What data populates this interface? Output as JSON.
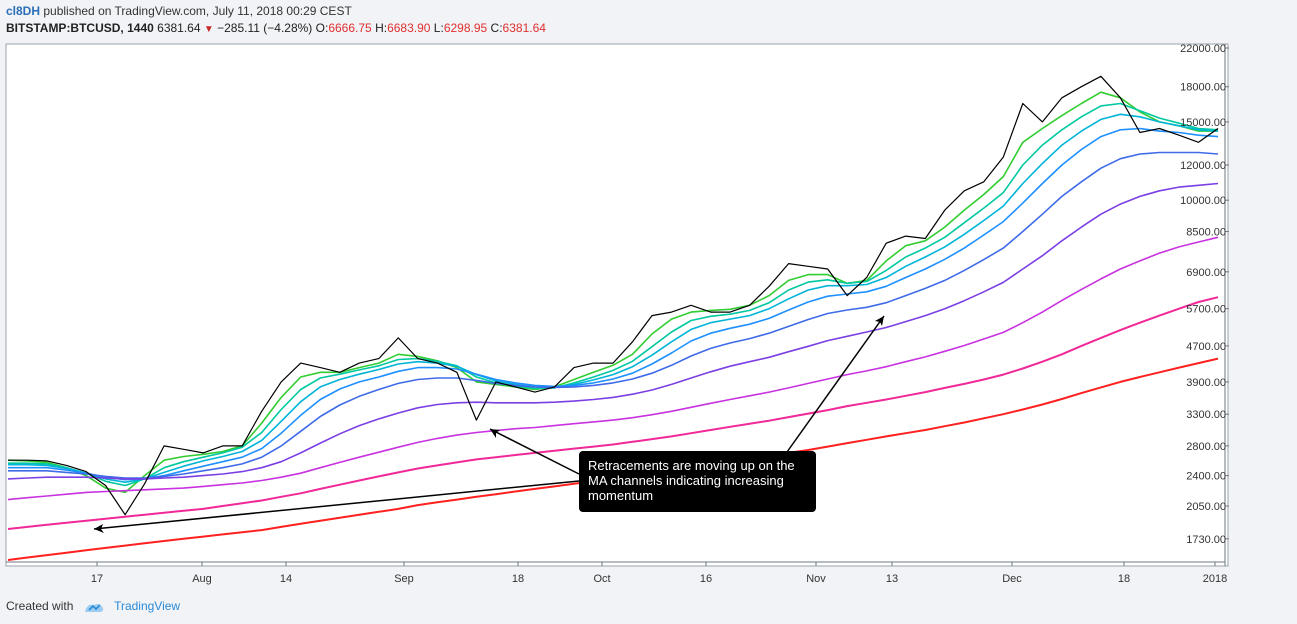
{
  "header": {
    "user": "cl8DH",
    "published": "published on TradingView.com, July 11, 2018 00:29 CEST",
    "symbol": "BITSTAMP:BTCUSD, 1440",
    "last": "6381.64",
    "change": "−285.11 (−4.28%)",
    "o_label": "O:",
    "o_val": "6666.75",
    "h_label": "H:",
    "h_val": "6683.90",
    "l_label": "L:",
    "l_val": "6298.95",
    "c_label": "C:",
    "c_val": "6381.64"
  },
  "footer": {
    "created": "Created with",
    "brand": "TradingView"
  },
  "annotation": "Retracements are moving up on the MA channels indicating increasing momentum",
  "colors": {
    "background": "#ffffff",
    "price": "#000000",
    "ma": [
      "#32cd32",
      "#00c8a0",
      "#00b4d8",
      "#1e90ff",
      "#3f6be8",
      "#7b3fe4",
      "#c832e0",
      "#f02898",
      "#ff2020",
      "#ff6a00"
    ]
  },
  "chart_data": {
    "type": "line",
    "title": "",
    "ylim": [
      1550,
      22000
    ],
    "y_scale": "log",
    "x_ticks": [
      "17",
      "Aug",
      "14",
      "Sep",
      "18",
      "Oct",
      "16",
      "Nov",
      "13",
      "Dec",
      "18",
      "2018"
    ],
    "y_ticks": [
      "22000.00",
      "18000.00",
      "15000.00",
      "12000.00",
      "10000.00",
      "8500.00",
      "6900.00",
      "5700.00",
      "4700.00",
      "3900.00",
      "3300.00",
      "2800.00",
      "2400.00",
      "2050.00",
      "1730.00"
    ],
    "series": [
      {
        "values": [
          2600,
          2600,
          2590,
          2530,
          2450,
          2280,
          1960,
          2300,
          2800,
          2750,
          2700,
          2800,
          2800,
          3350,
          3900,
          4300,
          4200,
          4100,
          4300,
          4400,
          4900,
          4400,
          4300,
          4100,
          3200,
          3900,
          3800,
          3700,
          3800,
          4200,
          4300,
          4300,
          4800,
          5500,
          5600,
          5800,
          5600,
          5600,
          5800,
          6400,
          7200,
          7100,
          7000,
          6100,
          6700,
          8000,
          8300,
          8200,
          9500,
          10500,
          11000,
          12500,
          16500,
          15000,
          17000,
          18000,
          19000,
          17000,
          14200,
          14500,
          14000,
          13500,
          14500
        ]
      },
      {
        "values": [
          2600,
          2590,
          2570,
          2500,
          2400,
          2250,
          2200,
          2400,
          2600,
          2650,
          2680,
          2720,
          2800,
          3150,
          3600,
          4000,
          4100,
          4100,
          4200,
          4300,
          4500,
          4450,
          4350,
          4200,
          3900,
          3850,
          3800,
          3750,
          3800,
          3950,
          4100,
          4250,
          4500,
          5000,
          5400,
          5600,
          5650,
          5680,
          5800,
          6100,
          6600,
          6800,
          6800,
          6500,
          6600,
          7300,
          7900,
          8100,
          8700,
          9500,
          10300,
          11300,
          13500,
          14500,
          15500,
          16500,
          17500,
          17000,
          15800,
          15000,
          14700,
          14300,
          14300
        ]
      },
      {
        "values": [
          2560,
          2560,
          2550,
          2500,
          2430,
          2330,
          2280,
          2360,
          2500,
          2580,
          2640,
          2700,
          2780,
          3000,
          3380,
          3750,
          3980,
          4060,
          4150,
          4240,
          4380,
          4400,
          4340,
          4240,
          4000,
          3880,
          3820,
          3770,
          3780,
          3880,
          4000,
          4140,
          4340,
          4680,
          5050,
          5360,
          5480,
          5540,
          5650,
          5880,
          6280,
          6540,
          6620,
          6500,
          6560,
          6950,
          7450,
          7800,
          8250,
          8900,
          9600,
          10400,
          12000,
          13300,
          14400,
          15400,
          16300,
          16500,
          15900,
          15300,
          14900,
          14500,
          14400
        ]
      },
      {
        "values": [
          2540,
          2540,
          2530,
          2490,
          2430,
          2360,
          2320,
          2360,
          2440,
          2520,
          2590,
          2650,
          2720,
          2880,
          3180,
          3520,
          3800,
          3950,
          4060,
          4160,
          4280,
          4330,
          4300,
          4230,
          4050,
          3920,
          3850,
          3800,
          3790,
          3850,
          3940,
          4050,
          4220,
          4480,
          4800,
          5120,
          5300,
          5400,
          5500,
          5700,
          6000,
          6280,
          6420,
          6420,
          6460,
          6700,
          7100,
          7450,
          7850,
          8380,
          9000,
          9700,
          10900,
          12100,
          13300,
          14300,
          15200,
          15600,
          15400,
          15000,
          14700,
          14400,
          14300
        ]
      },
      {
        "values": [
          2500,
          2500,
          2500,
          2470,
          2430,
          2380,
          2350,
          2360,
          2400,
          2460,
          2520,
          2580,
          2640,
          2760,
          2990,
          3280,
          3560,
          3760,
          3900,
          4000,
          4120,
          4200,
          4200,
          4170,
          4060,
          3950,
          3880,
          3830,
          3810,
          3830,
          3880,
          3960,
          4080,
          4280,
          4530,
          4820,
          5020,
          5150,
          5260,
          5420,
          5660,
          5900,
          6080,
          6150,
          6220,
          6400,
          6700,
          7000,
          7360,
          7800,
          8350,
          8950,
          9850,
          10900,
          12000,
          13000,
          13900,
          14400,
          14500,
          14300,
          14200,
          14000,
          13900
        ]
      },
      {
        "values": [
          2460,
          2460,
          2460,
          2440,
          2420,
          2390,
          2370,
          2370,
          2390,
          2420,
          2460,
          2500,
          2550,
          2640,
          2800,
          3020,
          3260,
          3460,
          3620,
          3750,
          3870,
          3950,
          3980,
          3980,
          3930,
          3870,
          3830,
          3800,
          3790,
          3800,
          3830,
          3880,
          3960,
          4080,
          4250,
          4460,
          4640,
          4770,
          4880,
          5020,
          5200,
          5390,
          5560,
          5660,
          5740,
          5880,
          6100,
          6330,
          6600,
          6950,
          7350,
          7800,
          8500,
          9300,
          10200,
          11000,
          11800,
          12400,
          12700,
          12800,
          12800,
          12800,
          12700
        ]
      },
      {
        "values": [
          2360,
          2370,
          2380,
          2380,
          2380,
          2370,
          2360,
          2360,
          2370,
          2380,
          2400,
          2420,
          2450,
          2500,
          2580,
          2700,
          2840,
          2980,
          3110,
          3220,
          3320,
          3410,
          3470,
          3500,
          3510,
          3500,
          3500,
          3500,
          3510,
          3530,
          3560,
          3600,
          3660,
          3740,
          3850,
          3980,
          4110,
          4230,
          4330,
          4430,
          4560,
          4690,
          4830,
          4940,
          5050,
          5170,
          5330,
          5500,
          5700,
          5940,
          6220,
          6530,
          7000,
          7500,
          8100,
          8700,
          9300,
          9800,
          10200,
          10500,
          10700,
          10800,
          10900
        ]
      },
      {
        "values": [
          2120,
          2140,
          2160,
          2180,
          2200,
          2210,
          2220,
          2230,
          2240,
          2250,
          2270,
          2290,
          2310,
          2340,
          2380,
          2430,
          2500,
          2570,
          2640,
          2710,
          2780,
          2850,
          2910,
          2960,
          3000,
          3030,
          3060,
          3080,
          3110,
          3140,
          3170,
          3200,
          3240,
          3290,
          3350,
          3420,
          3490,
          3560,
          3630,
          3700,
          3780,
          3870,
          3960,
          4050,
          4130,
          4220,
          4330,
          4440,
          4570,
          4710,
          4870,
          5040,
          5300,
          5600,
          5950,
          6300,
          6650,
          7000,
          7300,
          7600,
          7850,
          8050,
          8250
        ]
      },
      {
        "values": [
          1820,
          1840,
          1860,
          1880,
          1900,
          1920,
          1940,
          1960,
          1980,
          2000,
          2020,
          2050,
          2080,
          2110,
          2150,
          2190,
          2240,
          2290,
          2340,
          2390,
          2440,
          2490,
          2530,
          2570,
          2610,
          2640,
          2670,
          2700,
          2730,
          2760,
          2790,
          2820,
          2860,
          2900,
          2940,
          2990,
          3040,
          3090,
          3140,
          3190,
          3250,
          3310,
          3370,
          3440,
          3500,
          3560,
          3630,
          3700,
          3780,
          3860,
          3950,
          4050,
          4180,
          4330,
          4500,
          4700,
          4900,
          5100,
          5300,
          5500,
          5700,
          5900,
          6050
        ]
      },
      {
        "values": [
          1550,
          1570,
          1590,
          1610,
          1630,
          1650,
          1670,
          1690,
          1710,
          1730,
          1750,
          1770,
          1790,
          1810,
          1840,
          1870,
          1900,
          1930,
          1960,
          1990,
          2020,
          2060,
          2090,
          2120,
          2150,
          2180,
          2210,
          2240,
          2270,
          2300,
          2330,
          2360,
          2390,
          2420,
          2460,
          2500,
          2540,
          2580,
          2620,
          2660,
          2700,
          2740,
          2790,
          2840,
          2890,
          2940,
          2990,
          3040,
          3100,
          3160,
          3230,
          3300,
          3380,
          3470,
          3570,
          3680,
          3790,
          3900,
          4000,
          4100,
          4200,
          4300,
          4400
        ]
      }
    ],
    "grid": false,
    "legend": "none"
  }
}
